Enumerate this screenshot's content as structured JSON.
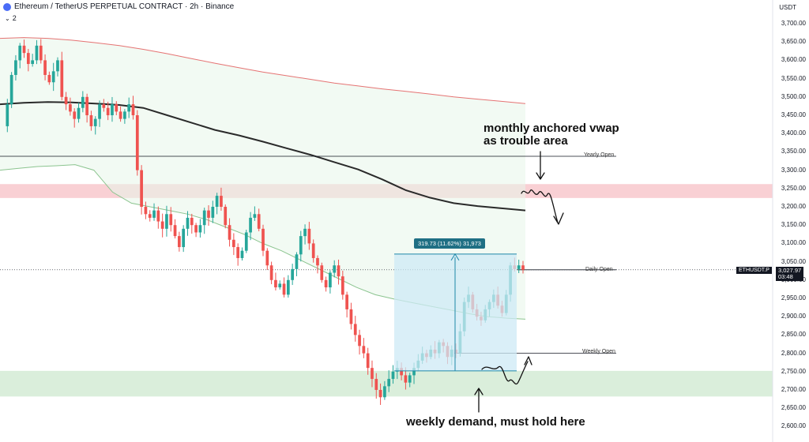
{
  "header": {
    "title": "Ethereum / TetherUS PERPETUAL CONTRACT · 2h · Binance",
    "indicator_count": "2",
    "currency": "USDT"
  },
  "annotations": {
    "vwap_note_line1": "monthly anchored vwap",
    "vwap_note_line2": "as trouble area",
    "demand_note": "weekly demand, must hold here"
  },
  "levels": {
    "yearly_open": "Yearly Open",
    "daily_open": "Daily Open",
    "weekly_open": "Weekly Open"
  },
  "symbol_badge": "ETHUSDT.P",
  "last_price": "3,027.97",
  "countdown": "03:48",
  "measurement": "319.73 (11.62%) 31,973",
  "colors": {
    "up": "#26a69a",
    "down": "#ef5350",
    "vwap": "#2a2a2a",
    "upper_band": "#e57373",
    "lower_band": "#8bc48f",
    "resistance_zone": "#f8c8cc",
    "demand_zone": "#d4ebd5",
    "measure_box": "#cdeaf5"
  },
  "chart_data": {
    "type": "candlestick",
    "y_axis": {
      "ticks": [
        "3,700.00",
        "3,650.00",
        "3,600.00",
        "3,550.00",
        "3,500.00",
        "3,450.00",
        "3,400.00",
        "3,350.00",
        "3,300.00",
        "3,250.00",
        "3,200.00",
        "3,150.00",
        "3,100.00",
        "3,050.00",
        "3,000.00",
        "2,950.00",
        "2,900.00",
        "2,850.00",
        "2,800.00",
        "2,750.00",
        "2,700.00",
        "2,650.00",
        "2,600.00"
      ],
      "range": [
        2600,
        3700
      ],
      "position": "right"
    },
    "close_path": [
      3420,
      3480,
      3560,
      3600,
      3640,
      3620,
      3590,
      3600,
      3640,
      3600,
      3560,
      3540,
      3570,
      3600,
      3500,
      3480,
      3460,
      3440,
      3470,
      3500,
      3450,
      3420,
      3440,
      3480,
      3470,
      3450,
      3480,
      3460,
      3440,
      3460,
      3480,
      3450,
      3300,
      3200,
      3180,
      3170,
      3190,
      3160,
      3140,
      3180,
      3150,
      3120,
      3090,
      3140,
      3170,
      3150,
      3130,
      3150,
      3190,
      3170,
      3200,
      3230,
      3200,
      3150,
      3110,
      3090,
      3060,
      3080,
      3130,
      3170,
      3180,
      3140,
      3080,
      3040,
      3000,
      2980,
      2990,
      2960,
      3000,
      3030,
      3070,
      3120,
      3140,
      3100,
      3060,
      3040,
      3000,
      2980,
      3020,
      3040,
      3010,
      2960,
      2920,
      2880,
      2850,
      2820,
      2800,
      2760,
      2730,
      2700,
      2680,
      2710,
      2730,
      2750,
      2760,
      2740,
      2720,
      2740,
      2760,
      2780,
      2800,
      2790,
      2810,
      2800,
      2830,
      2820,
      2790,
      2810,
      2800,
      2860,
      2940,
      2960,
      2920,
      2900,
      2890,
      2920,
      2940,
      2960,
      2930,
      2910,
      2960,
      3040,
      3030,
      3040,
      3028
    ],
    "upper_band_path": [
      3660,
      3662,
      3660,
      3655,
      3648,
      3640,
      3630,
      3618,
      3605,
      3592,
      3580,
      3568,
      3558,
      3548,
      3538,
      3530,
      3522,
      3515,
      3508,
      3500,
      3494,
      3488,
      3482
    ],
    "vwap_path": [
      3480,
      3484,
      3486,
      3485,
      3482,
      3478,
      3470,
      3450,
      3430,
      3410,
      3395,
      3378,
      3360,
      3342,
      3322,
      3302,
      3275,
      3245,
      3225,
      3210,
      3202,
      3196,
      3190
    ],
    "lower_band_path": [
      3300,
      3305,
      3310,
      3312,
      3315,
      3300,
      3240,
      3210,
      3200,
      3190,
      3180,
      3165,
      3145,
      3125,
      3100,
      3080,
      3055,
      3030,
      3005,
      2980,
      2960,
      2948,
      2938,
      2928,
      2918,
      2908,
      2900,
      2896,
      2893
    ],
    "levels": [
      {
        "label": "Yearly Open",
        "price": 3338
      },
      {
        "label": "Daily Open",
        "price": 3028
      },
      {
        "label": "Weekly Open",
        "price": 2800
      }
    ],
    "zones": [
      {
        "name": "resistance",
        "from": 3224,
        "to": 3262
      },
      {
        "name": "weekly demand",
        "from": 2682,
        "to": 2752
      }
    ],
    "measure": {
      "from": 2752,
      "to": 3071,
      "change": 319.73,
      "percent": 11.62
    }
  }
}
